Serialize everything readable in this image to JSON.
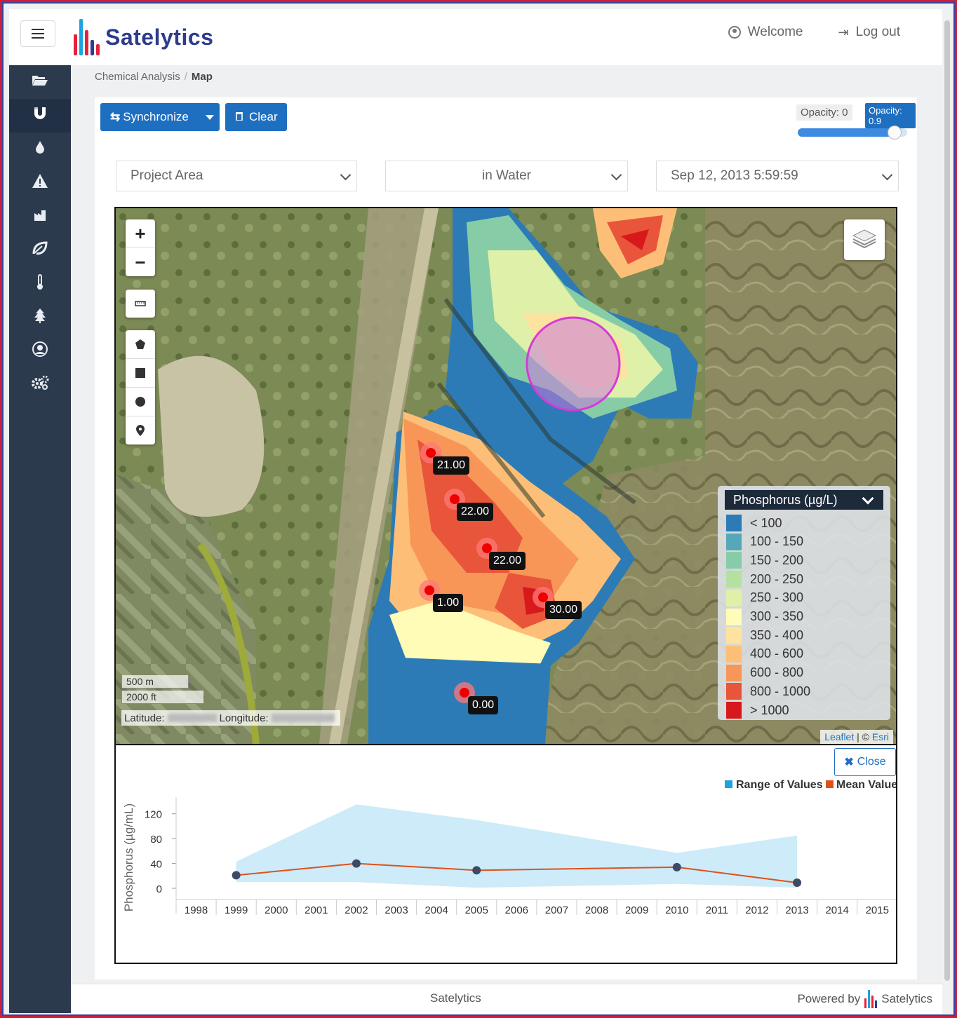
{
  "app": {
    "brand": "Satelytics"
  },
  "header": {
    "welcome": "Welcome",
    "logout": "Log out"
  },
  "sidebar": {
    "items": [
      {
        "icon": "folder-open-icon"
      },
      {
        "icon": "magnet-icon",
        "active": true
      },
      {
        "icon": "drop-icon"
      },
      {
        "icon": "warning-icon"
      },
      {
        "icon": "factory-icon"
      },
      {
        "icon": "leaf-icon"
      },
      {
        "icon": "thermometer-icon"
      },
      {
        "icon": "tree-icon"
      },
      {
        "icon": "user-circle-icon"
      },
      {
        "icon": "cogs-icon"
      }
    ]
  },
  "breadcrumb": {
    "parent": "Chemical Analysis",
    "current": "Map"
  },
  "toolbar": {
    "synchronize": "Synchronize",
    "clear": "Clear",
    "opacity_min_label": "Opacity: 0",
    "opacity_current_label": "Opacity: 0.9",
    "opacity_value": 0.9
  },
  "filters": {
    "area": "Project Area",
    "medium": "in Water",
    "date": "Sep 12, 2013 5:59:59"
  },
  "map": {
    "zoom_in": "+",
    "zoom_out": "−",
    "markers": [
      {
        "value": "21.00"
      },
      {
        "value": "22.00"
      },
      {
        "value": "22.00"
      },
      {
        "value": "1.00"
      },
      {
        "value": "30.00"
      },
      {
        "value": "0.00"
      }
    ],
    "scale_m": "500 m",
    "scale_ft": "2000 ft",
    "latitude_label": "Latitude:",
    "longitude_label": "Longitude:",
    "attribution_leaflet": "Leaflet",
    "attribution_sep": " | © ",
    "attribution_esri": "Esri",
    "legend": {
      "title": "Phosphorus  (µg/L)",
      "entries": [
        {
          "label": "< 100",
          "color": "#2c7bb6"
        },
        {
          "label": "100 - 150",
          "color": "#55a8b8"
        },
        {
          "label": "150 - 200",
          "color": "#86cca6"
        },
        {
          "label": "200 - 250",
          "color": "#b4e0a2"
        },
        {
          "label": "250 - 300",
          "color": "#dff0a8"
        },
        {
          "label": "300 - 350",
          "color": "#fffcb8"
        },
        {
          "label": "350 - 400",
          "color": "#fee3a0"
        },
        {
          "label": "400 - 600",
          "color": "#fdbf77"
        },
        {
          "label": "600 - 800",
          "color": "#f89658"
        },
        {
          "label": "800 - 1000",
          "color": "#e8553a"
        },
        {
          "label": "> 1000",
          "color": "#d7191c"
        }
      ]
    }
  },
  "chart_panel": {
    "close": "Close"
  },
  "chart_data": {
    "type": "line",
    "ylabel": "Phosphorus (µg/mL)",
    "categories": [
      "1998",
      "1999",
      "2000",
      "2001",
      "2002",
      "2003",
      "2004",
      "2005",
      "2006",
      "2007",
      "2008",
      "2009",
      "2010",
      "2011",
      "2012",
      "2013",
      "2014",
      "2015"
    ],
    "yticks": [
      0,
      40,
      80,
      120
    ],
    "series": [
      {
        "name": "Range of Values",
        "type": "area",
        "color": "#1aa3e0",
        "points": [
          {
            "x": "1999",
            "low": 10,
            "high": 43
          },
          {
            "x": "2002",
            "low": 10,
            "high": 135
          },
          {
            "x": "2005",
            "low": 1,
            "high": 110
          },
          {
            "x": "2010",
            "low": 7,
            "high": 57
          },
          {
            "x": "2013",
            "low": 1,
            "high": 85
          }
        ]
      },
      {
        "name": "Mean Value",
        "type": "line",
        "color": "#e0501a",
        "points": [
          {
            "x": "1999",
            "y": 21
          },
          {
            "x": "2002",
            "y": 40
          },
          {
            "x": "2005",
            "y": 29
          },
          {
            "x": "2010",
            "y": 34
          },
          {
            "x": "2013",
            "y": 9
          }
        ]
      }
    ]
  },
  "footer": {
    "center": "Satelytics",
    "powered_by": "Powered by",
    "brand": "Satelytics"
  }
}
